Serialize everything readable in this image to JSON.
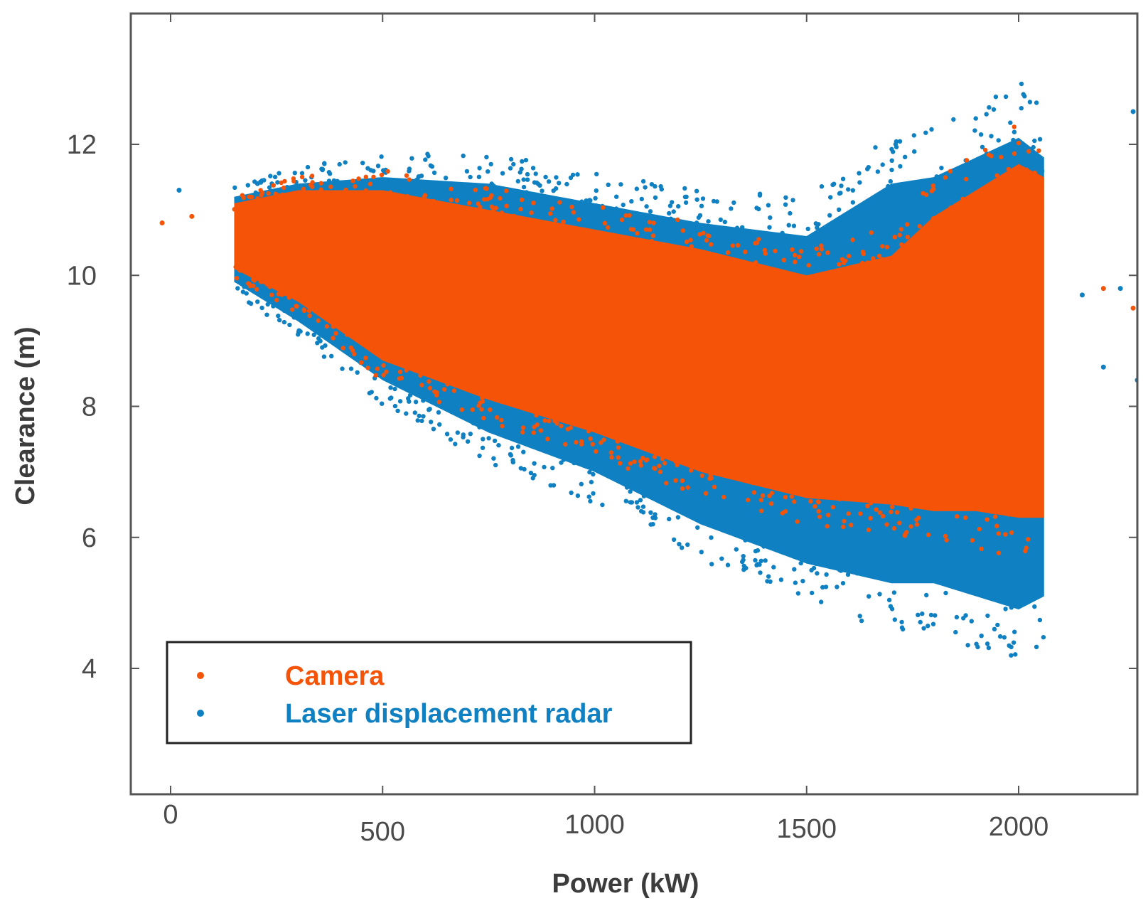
{
  "chart_data": {
    "type": "scatter",
    "title": "",
    "xlabel": "Power (kW)",
    "ylabel": "Clearance (m)",
    "xlim": [
      -95,
      2290
    ],
    "ylim": [
      2,
      14
    ],
    "x_ticks": [
      0,
      500,
      1000,
      1500,
      2000
    ],
    "y_ticks": [
      4,
      6,
      8,
      10,
      12
    ],
    "grid": false,
    "legend_position": "bottom-left",
    "series": [
      {
        "name": "Camera",
        "color": "#f45308",
        "marker": "dot",
        "description_points": [
          {
            "x": -20,
            "y": 10.8
          },
          {
            "x": 50,
            "y": 10.9
          },
          {
            "x": 150,
            "y": 10.6
          },
          {
            "x": 300,
            "y": 10.7
          },
          {
            "x": 500,
            "y": 10.3
          },
          {
            "x": 750,
            "y": 9.9
          },
          {
            "x": 1000,
            "y": 9.4
          },
          {
            "x": 1250,
            "y": 8.9
          },
          {
            "x": 1500,
            "y": 8.6
          },
          {
            "x": 1750,
            "y": 8.9
          },
          {
            "x": 1950,
            "y": 8.9
          },
          {
            "x": 2050,
            "y": 8.8
          },
          {
            "x": 2200,
            "y": 9.8
          },
          {
            "x": 2270,
            "y": 9.5
          }
        ],
        "envelope": [
          {
            "x": 150,
            "lower": 10.1,
            "upper": 11.1
          },
          {
            "x": 300,
            "lower": 9.6,
            "upper": 11.3
          },
          {
            "x": 500,
            "lower": 8.7,
            "upper": 11.3
          },
          {
            "x": 750,
            "lower": 8.1,
            "upper": 11.0
          },
          {
            "x": 1000,
            "lower": 7.6,
            "upper": 10.7
          },
          {
            "x": 1250,
            "lower": 7.0,
            "upper": 10.4
          },
          {
            "x": 1500,
            "lower": 6.6,
            "upper": 10.0
          },
          {
            "x": 1700,
            "lower": 6.5,
            "upper": 10.3
          },
          {
            "x": 1800,
            "lower": 6.4,
            "upper": 10.9
          },
          {
            "x": 1900,
            "lower": 6.4,
            "upper": 11.3
          },
          {
            "x": 2000,
            "lower": 6.3,
            "upper": 11.7
          },
          {
            "x": 2060,
            "lower": 6.3,
            "upper": 11.5
          }
        ]
      },
      {
        "name": "Laser displacement radar",
        "color": "#0f80c1",
        "marker": "dot",
        "envelope": [
          {
            "x": 150,
            "lower": 9.9,
            "upper": 11.2
          },
          {
            "x": 300,
            "lower": 9.3,
            "upper": 11.4
          },
          {
            "x": 500,
            "lower": 8.4,
            "upper": 11.5
          },
          {
            "x": 750,
            "lower": 7.6,
            "upper": 11.4
          },
          {
            "x": 1000,
            "lower": 7.0,
            "upper": 11.1
          },
          {
            "x": 1250,
            "lower": 6.2,
            "upper": 10.8
          },
          {
            "x": 1500,
            "lower": 5.6,
            "upper": 10.6
          },
          {
            "x": 1700,
            "lower": 5.3,
            "upper": 11.4
          },
          {
            "x": 1800,
            "lower": 5.3,
            "upper": 11.5
          },
          {
            "x": 1900,
            "lower": 5.1,
            "upper": 11.8
          },
          {
            "x": 2000,
            "lower": 4.9,
            "upper": 12.1
          },
          {
            "x": 2060,
            "lower": 5.1,
            "upper": 11.8
          }
        ],
        "outliers": [
          {
            "x": 2270,
            "y": 12.5
          },
          {
            "x": 2280,
            "y": 8.4
          },
          {
            "x": 2240,
            "y": 9.8
          },
          {
            "x": 2200,
            "y": 8.6
          },
          {
            "x": 2150,
            "y": 9.7
          },
          {
            "x": 20,
            "y": 11.3
          }
        ]
      }
    ],
    "legend": {
      "entries": [
        {
          "label": "Camera",
          "color": "#f45308"
        },
        {
          "label": "Laser displacement radar",
          "color": "#0f80c1"
        }
      ]
    }
  }
}
